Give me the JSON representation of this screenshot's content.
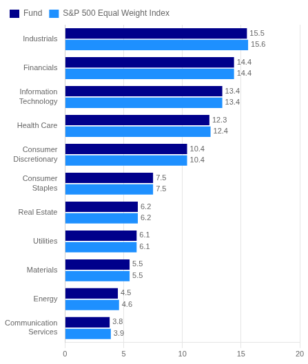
{
  "chart_data": {
    "type": "bar",
    "orientation": "horizontal",
    "categories": [
      "Industrials",
      "Financials",
      "Information\nTechnology",
      "Health Care",
      "Consumer\nDiscretionary",
      "Consumer\nStaples",
      "Real Estate",
      "Utilities",
      "Materials",
      "Energy",
      "Communication\nServices"
    ],
    "series": [
      {
        "name": "Fund",
        "color": "#00008B",
        "values": [
          15.5,
          14.4,
          13.4,
          12.3,
          10.4,
          7.5,
          6.2,
          6.1,
          5.5,
          4.5,
          3.8
        ]
      },
      {
        "name": "S&P 500 Equal Weight Index",
        "color": "#1E90FF",
        "values": [
          15.6,
          14.4,
          13.4,
          12.4,
          10.4,
          7.5,
          6.2,
          6.1,
          5.5,
          4.6,
          3.9
        ]
      }
    ],
    "xlim": [
      0,
      20
    ],
    "xticks": [
      0,
      5,
      10,
      15,
      20
    ],
    "grid": true,
    "legend": "upper left",
    "data_labels": true
  }
}
